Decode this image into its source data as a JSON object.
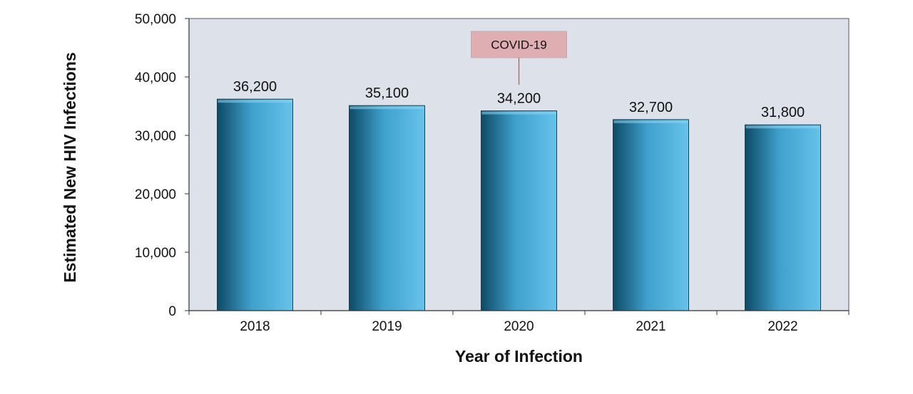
{
  "chart_data": {
    "type": "bar",
    "title": "",
    "xlabel": "Year of Infection",
    "ylabel": "Estimated New HIV Infections",
    "categories": [
      "2018",
      "2019",
      "2020",
      "2021",
      "2022"
    ],
    "values": [
      36200,
      35100,
      34200,
      32700,
      31800
    ],
    "value_labels": [
      "36,200",
      "35,100",
      "34,200",
      "32,700",
      "31,800"
    ],
    "ylim": [
      0,
      50000
    ],
    "yticks": [
      0,
      10000,
      20000,
      30000,
      40000,
      50000
    ],
    "ytick_labels": [
      "0",
      "10,000",
      "20,000",
      "30,000",
      "40,000",
      "50,000"
    ],
    "grid": false,
    "annotation": {
      "text": "COVID-19",
      "category": "2020"
    },
    "colors": {
      "plot_background": "#dde2ea",
      "bar_dark": "#0d4a66",
      "bar_mid": "#3fa0cc",
      "bar_light": "#66c3ea",
      "annotation_fill": "#deaeb3",
      "annotation_line": "#d64c5e"
    }
  }
}
